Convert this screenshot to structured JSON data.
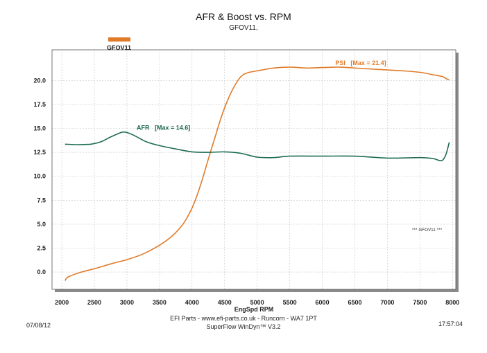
{
  "header": {
    "title": "AFR & Boost vs. RPM",
    "subtitle": "GFOV11,"
  },
  "legend": {
    "label": "GFOV11",
    "color": "#e07b2a"
  },
  "watermark": "*** GFOV11 ***",
  "footer": {
    "line1": "EFI Parts - www.efi-parts.co.uk - Runcorn - WA7 1PT",
    "line2": "SuperFlow WinDyn™ V3.2",
    "date": "07/08/12",
    "time": "17:57:04"
  },
  "chart_data": {
    "type": "line",
    "title": "AFR & Boost vs. RPM",
    "subtitle": "GFOV11,",
    "xlabel": "EngSpd RPM",
    "ylabel": "",
    "xlim": [
      1850,
      8050
    ],
    "ylim": [
      -1.8,
      23.2
    ],
    "xticks": [
      2000,
      2500,
      3000,
      3500,
      4000,
      4500,
      5000,
      5500,
      6000,
      6500,
      7000,
      7500,
      8000
    ],
    "xtick_labels": [
      "2000",
      "2500",
      "3000",
      "3500",
      "4000",
      "4500",
      "5000",
      "5500",
      "6000",
      "6500",
      "7000",
      "7500",
      "8000"
    ],
    "yticks": [
      0,
      2.5,
      5,
      7.5,
      10,
      12.5,
      15,
      17.5,
      20
    ],
    "ytick_labels": [
      "0.0",
      "2.5",
      "5.0",
      "7.5",
      "10.0",
      "12.5",
      "15.0",
      "17.5",
      "20.0"
    ],
    "grid": true,
    "series": [
      {
        "name": "PSI",
        "color": "#e07b2a",
        "annotation": "PSI   [Max = 21.4]",
        "annotation_at": [
          6200,
          21.6
        ],
        "points": [
          [
            2050,
            -0.9
          ],
          [
            2100,
            -0.5
          ],
          [
            2300,
            0
          ],
          [
            2500,
            0.35
          ],
          [
            2750,
            0.85
          ],
          [
            3000,
            1.3
          ],
          [
            3250,
            1.9
          ],
          [
            3500,
            2.8
          ],
          [
            3700,
            3.8
          ],
          [
            3850,
            4.9
          ],
          [
            3950,
            6.0
          ],
          [
            4050,
            7.5
          ],
          [
            4150,
            9.5
          ],
          [
            4250,
            11.8
          ],
          [
            4350,
            14.0
          ],
          [
            4450,
            16.2
          ],
          [
            4550,
            18.0
          ],
          [
            4650,
            19.4
          ],
          [
            4750,
            20.4
          ],
          [
            4850,
            20.8
          ],
          [
            5000,
            21.0
          ],
          [
            5250,
            21.3
          ],
          [
            5500,
            21.4
          ],
          [
            5750,
            21.3
          ],
          [
            6000,
            21.35
          ],
          [
            6250,
            21.4
          ],
          [
            6500,
            21.3
          ],
          [
            6750,
            21.2
          ],
          [
            7000,
            21.1
          ],
          [
            7250,
            21.0
          ],
          [
            7500,
            20.85
          ],
          [
            7700,
            20.6
          ],
          [
            7850,
            20.4
          ],
          [
            7900,
            20.2
          ],
          [
            7950,
            20.05
          ]
        ]
      },
      {
        "name": "AFR",
        "color": "#1e6b4e",
        "annotation": "AFR   [Max = 14.6]",
        "annotation_at": [
          3150,
          14.85
        ],
        "points": [
          [
            2050,
            13.35
          ],
          [
            2250,
            13.3
          ],
          [
            2450,
            13.35
          ],
          [
            2600,
            13.6
          ],
          [
            2750,
            14.1
          ],
          [
            2900,
            14.55
          ],
          [
            2980,
            14.6
          ],
          [
            3100,
            14.3
          ],
          [
            3300,
            13.6
          ],
          [
            3500,
            13.2
          ],
          [
            3750,
            12.85
          ],
          [
            4000,
            12.55
          ],
          [
            4250,
            12.5
          ],
          [
            4500,
            12.55
          ],
          [
            4750,
            12.4
          ],
          [
            5000,
            12.0
          ],
          [
            5250,
            11.95
          ],
          [
            5500,
            12.1
          ],
          [
            6000,
            12.1
          ],
          [
            6500,
            12.1
          ],
          [
            7000,
            11.9
          ],
          [
            7500,
            11.95
          ],
          [
            7700,
            11.85
          ],
          [
            7800,
            11.65
          ],
          [
            7850,
            11.7
          ],
          [
            7900,
            12.3
          ],
          [
            7950,
            13.55
          ]
        ]
      }
    ]
  }
}
